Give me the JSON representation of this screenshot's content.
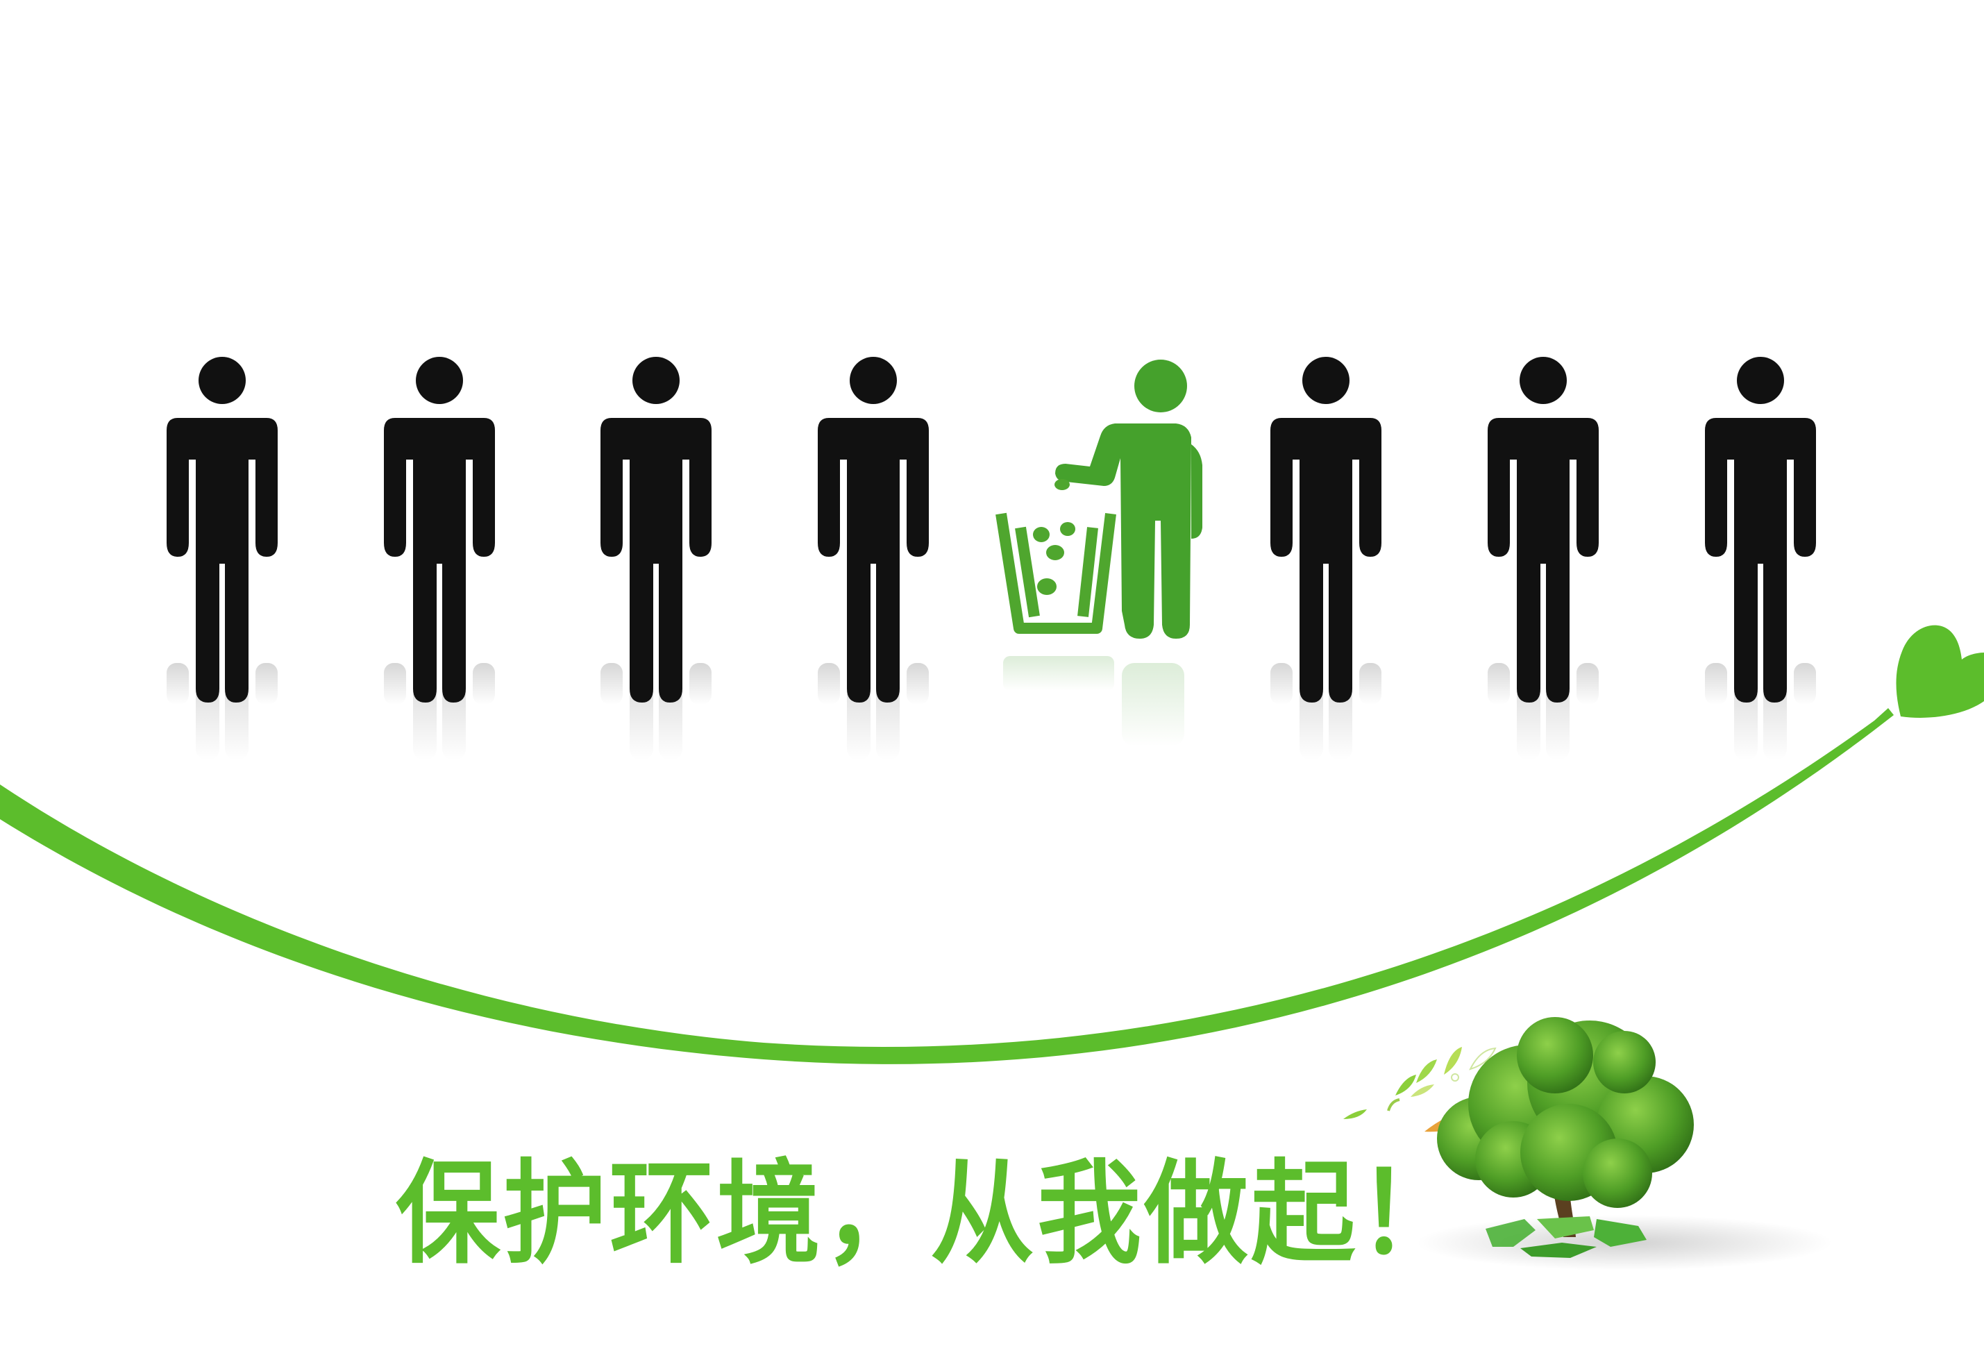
{
  "slogan": {
    "text": "保护环境，从我做起！"
  },
  "scene": {
    "people": [
      {
        "kind": "person",
        "color": "#111111"
      },
      {
        "kind": "person",
        "color": "#111111"
      },
      {
        "kind": "person",
        "color": "#111111"
      },
      {
        "kind": "person",
        "color": "#111111"
      },
      {
        "kind": "person-recycling",
        "color": "#3f9a2a"
      },
      {
        "kind": "person",
        "color": "#111111"
      },
      {
        "kind": "person",
        "color": "#111111"
      },
      {
        "kind": "person",
        "color": "#111111"
      }
    ],
    "icons": {
      "trash_bin": "trash-bin-icon",
      "heart": "heart-icon",
      "tree": "tree-icon",
      "recycle": "recycle-icon",
      "leaves": "falling-leaves-icon"
    }
  },
  "colors": {
    "accent_green": "#5cbd2c",
    "dark_green": "#3f9a2a",
    "figure_black": "#111111",
    "leaf_orange": "#e8a13a"
  }
}
